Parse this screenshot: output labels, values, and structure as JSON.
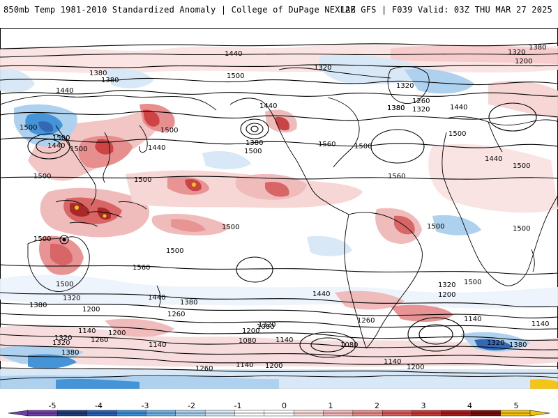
{
  "header": {
    "title": "850mb Temp 1981-2010 Standardized Anomaly | College of DuPage NEXLAB",
    "run_info": "12Z GFS | F039 Valid: 03Z THU MAR 27 2025"
  },
  "map": {
    "projection": "global cylindrical (Pacific-centered)",
    "field": "850mb temperature standardized anomaly (shaded)",
    "contour_field": "heights (contoured)",
    "colors": {
      "land_outline": "#000000",
      "ocean_background": "#ffffff"
    },
    "contour_labels": [
      {
        "id": "c1",
        "text": "1440"
      },
      {
        "id": "c2",
        "text": "1380"
      },
      {
        "id": "c3",
        "text": "1320"
      },
      {
        "id": "c4",
        "text": "1380"
      },
      {
        "id": "c5",
        "text": "1200"
      },
      {
        "id": "c6",
        "text": "1320"
      },
      {
        "id": "c7",
        "text": "1380"
      },
      {
        "id": "c8",
        "text": "1380"
      },
      {
        "id": "c9",
        "text": "1440"
      },
      {
        "id": "c10",
        "text": "1500"
      },
      {
        "id": "c11",
        "text": "1440"
      },
      {
        "id": "c12",
        "text": "1500"
      },
      {
        "id": "c13",
        "text": "1440"
      },
      {
        "id": "c14",
        "text": "1500"
      },
      {
        "id": "c15",
        "text": "1440"
      },
      {
        "id": "c16",
        "text": "1500"
      },
      {
        "id": "c17",
        "text": "1500"
      },
      {
        "id": "c18",
        "text": "1500"
      },
      {
        "id": "c19",
        "text": "1380"
      },
      {
        "id": "c20",
        "text": "1500"
      },
      {
        "id": "c21",
        "text": "1560"
      },
      {
        "id": "c22",
        "text": "1500"
      },
      {
        "id": "c23",
        "text": "1560"
      },
      {
        "id": "c24",
        "text": "1380"
      },
      {
        "id": "c25",
        "text": "1320"
      },
      {
        "id": "c26",
        "text": "1260"
      },
      {
        "id": "c27",
        "text": "1320"
      },
      {
        "id": "c28",
        "text": "1440"
      },
      {
        "id": "c29",
        "text": "1500"
      },
      {
        "id": "c30",
        "text": "1440"
      },
      {
        "id": "c31",
        "text": "1500"
      },
      {
        "id": "c32",
        "text": "1500"
      },
      {
        "id": "c33",
        "text": "1500"
      },
      {
        "id": "c34",
        "text": "1500"
      },
      {
        "id": "c35",
        "text": "1500"
      },
      {
        "id": "c36",
        "text": "1500"
      },
      {
        "id": "c37",
        "text": "1560"
      },
      {
        "id": "c38",
        "text": "1500"
      },
      {
        "id": "c39",
        "text": "1500"
      },
      {
        "id": "c40",
        "text": "1440"
      },
      {
        "id": "c41",
        "text": "1500"
      },
      {
        "id": "c42",
        "text": "1320"
      },
      {
        "id": "c43",
        "text": "1200"
      },
      {
        "id": "c44",
        "text": "1440"
      },
      {
        "id": "c45",
        "text": "1380"
      },
      {
        "id": "c46",
        "text": "1380"
      },
      {
        "id": "c47",
        "text": "1320"
      },
      {
        "id": "c48",
        "text": "1200"
      },
      {
        "id": "c49",
        "text": "1260"
      },
      {
        "id": "c50",
        "text": "1320"
      },
      {
        "id": "c51",
        "text": "1200"
      },
      {
        "id": "c52",
        "text": "1260"
      },
      {
        "id": "c53",
        "text": "1080"
      },
      {
        "id": "c54",
        "text": "1140"
      },
      {
        "id": "c55",
        "text": "1320"
      },
      {
        "id": "c56",
        "text": "1260"
      },
      {
        "id": "c57",
        "text": "1200"
      },
      {
        "id": "c58",
        "text": "1140"
      },
      {
        "id": "c59",
        "text": "1080"
      },
      {
        "id": "c60",
        "text": "1140"
      },
      {
        "id": "c61",
        "text": "1380"
      },
      {
        "id": "c62",
        "text": "1140"
      },
      {
        "id": "c63",
        "text": "1080"
      },
      {
        "id": "c64",
        "text": "1140"
      },
      {
        "id": "c65",
        "text": "1320"
      },
      {
        "id": "c66",
        "text": "1380"
      },
      {
        "id": "c67",
        "text": "1320"
      },
      {
        "id": "c68",
        "text": "1260"
      },
      {
        "id": "c69",
        "text": "1140"
      },
      {
        "id": "c70",
        "text": "1200"
      },
      {
        "id": "c71",
        "text": "1140"
      },
      {
        "id": "c72",
        "text": "1200"
      }
    ]
  },
  "colorbar": {
    "ticks": [
      "-5",
      "-4",
      "-3",
      "-2",
      "-1",
      "0",
      "1",
      "2",
      "3",
      "4",
      "5"
    ],
    "segment_colors": [
      "#6e3fa6",
      "#1f3d7a",
      "#2a60b0",
      "#3c8fd6",
      "#72b2e4",
      "#a9cfee",
      "#d6e7f6",
      "#ffffff",
      "#ffffff",
      "#f7dcdc",
      "#f0b8b8",
      "#e78f8f",
      "#d85e5e",
      "#c73a3a",
      "#a51d1d",
      "#7a0d0d",
      "#f4c20d"
    ]
  }
}
